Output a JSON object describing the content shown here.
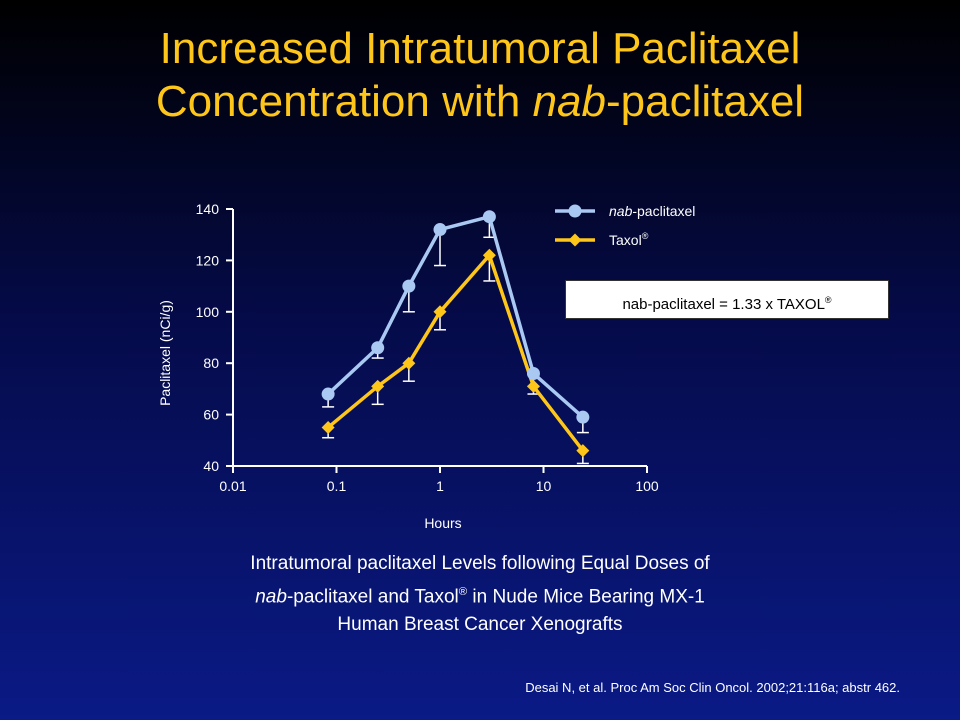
{
  "title": {
    "line1": "Increased Intratumoral Paclitaxel",
    "line2_prefix": "Concentration with ",
    "line2_italic": "nab",
    "line2_suffix": "-paclitaxel"
  },
  "note": "nab-paclitaxel = 1.33 x TAXOL",
  "note_sup": "®",
  "caption": {
    "line1": "Intratumoral paclitaxel Levels following Equal Doses of",
    "line2_italic": "nab",
    "line2_a": "-paclitaxel and Taxol",
    "line2_sup": "®",
    "line2_b": " in Nude Mice Bearing MX-1",
    "line3": "Human Breast Cancer Xenografts"
  },
  "source": "Desai N, et al. Proc Am Soc Clin Oncol. 2002;21:116a; abstr 462.",
  "chart_data": {
    "type": "line",
    "title": "",
    "xlabel": "Hours",
    "ylabel": "Paclitaxel (nCi/g)",
    "x_scale": "log",
    "xlim": [
      0.01,
      100
    ],
    "ylim": [
      40,
      140
    ],
    "x_ticks": [
      "0.01",
      "0.1",
      "1",
      "10",
      "100"
    ],
    "y_ticks": [
      "40",
      "60",
      "80",
      "100",
      "120",
      "140"
    ],
    "legend_position": "top-right",
    "series": [
      {
        "name": "nab-paclitaxel",
        "name_italic": "nab",
        "name_rest": "-paclitaxel",
        "color": "#a9c8f2",
        "marker": "circle",
        "x": [
          0.083,
          0.25,
          0.5,
          1,
          3,
          8,
          24
        ],
        "y": [
          68,
          86,
          110,
          132,
          137,
          76,
          59
        ],
        "err_low": [
          5,
          4,
          10,
          14,
          8,
          5,
          6
        ]
      },
      {
        "name": "Taxol®",
        "name_base": "Taxol",
        "name_sup": "®",
        "color": "#ffc61a",
        "marker": "diamond",
        "x": [
          0.083,
          0.25,
          0.5,
          1,
          3,
          8,
          24
        ],
        "y": [
          55,
          71,
          80,
          100,
          122,
          71,
          46
        ],
        "err_low": [
          4,
          7,
          7,
          7,
          10,
          3,
          5
        ]
      }
    ]
  }
}
